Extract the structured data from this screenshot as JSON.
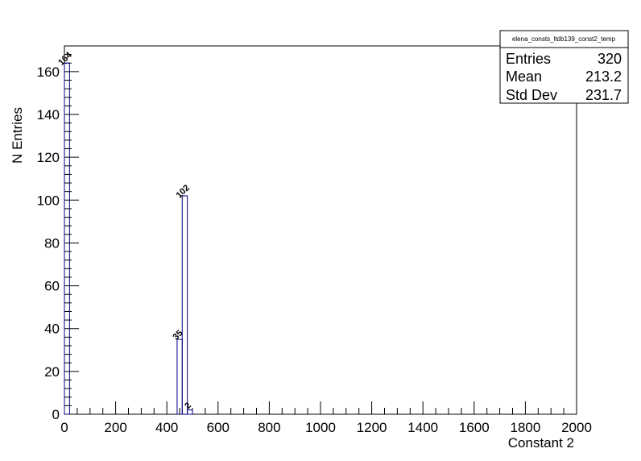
{
  "chart_data": {
    "type": "bar",
    "histogram_name": "elena_consts_ltdb139_const2_temp",
    "xlabel": "Constant 2",
    "ylabel": "N Entries",
    "xlim": [
      0,
      2000
    ],
    "ylim": [
      0,
      172
    ],
    "grid": false,
    "bin_width": 20,
    "bins": [
      {
        "x_low": 0,
        "x_high": 20,
        "value": 164,
        "label": "164"
      },
      {
        "x_low": 440,
        "x_high": 460,
        "value": 35,
        "label": "35"
      },
      {
        "x_low": 460,
        "x_high": 480,
        "value": 102,
        "label": "102"
      },
      {
        "x_low": 480,
        "x_high": 500,
        "value": 2,
        "label": "2"
      }
    ],
    "x_ticks": [
      "0",
      "200",
      "400",
      "600",
      "800",
      "1000",
      "1200",
      "1400",
      "1600",
      "1800",
      "2000"
    ],
    "y_ticks": [
      "0",
      "20",
      "40",
      "60",
      "80",
      "100",
      "120",
      "140",
      "160"
    ],
    "stats_box": {
      "title": "elena_consts_ltdb139_const2_temp",
      "rows": [
        {
          "label": "Entries",
          "value": "320"
        },
        {
          "label": "Mean",
          "value": "213.2"
        },
        {
          "label": "Std Dev",
          "value": "231.7"
        }
      ]
    }
  },
  "colors": {
    "line": "#000080",
    "axis": "#000000",
    "background": "#ffffff"
  }
}
